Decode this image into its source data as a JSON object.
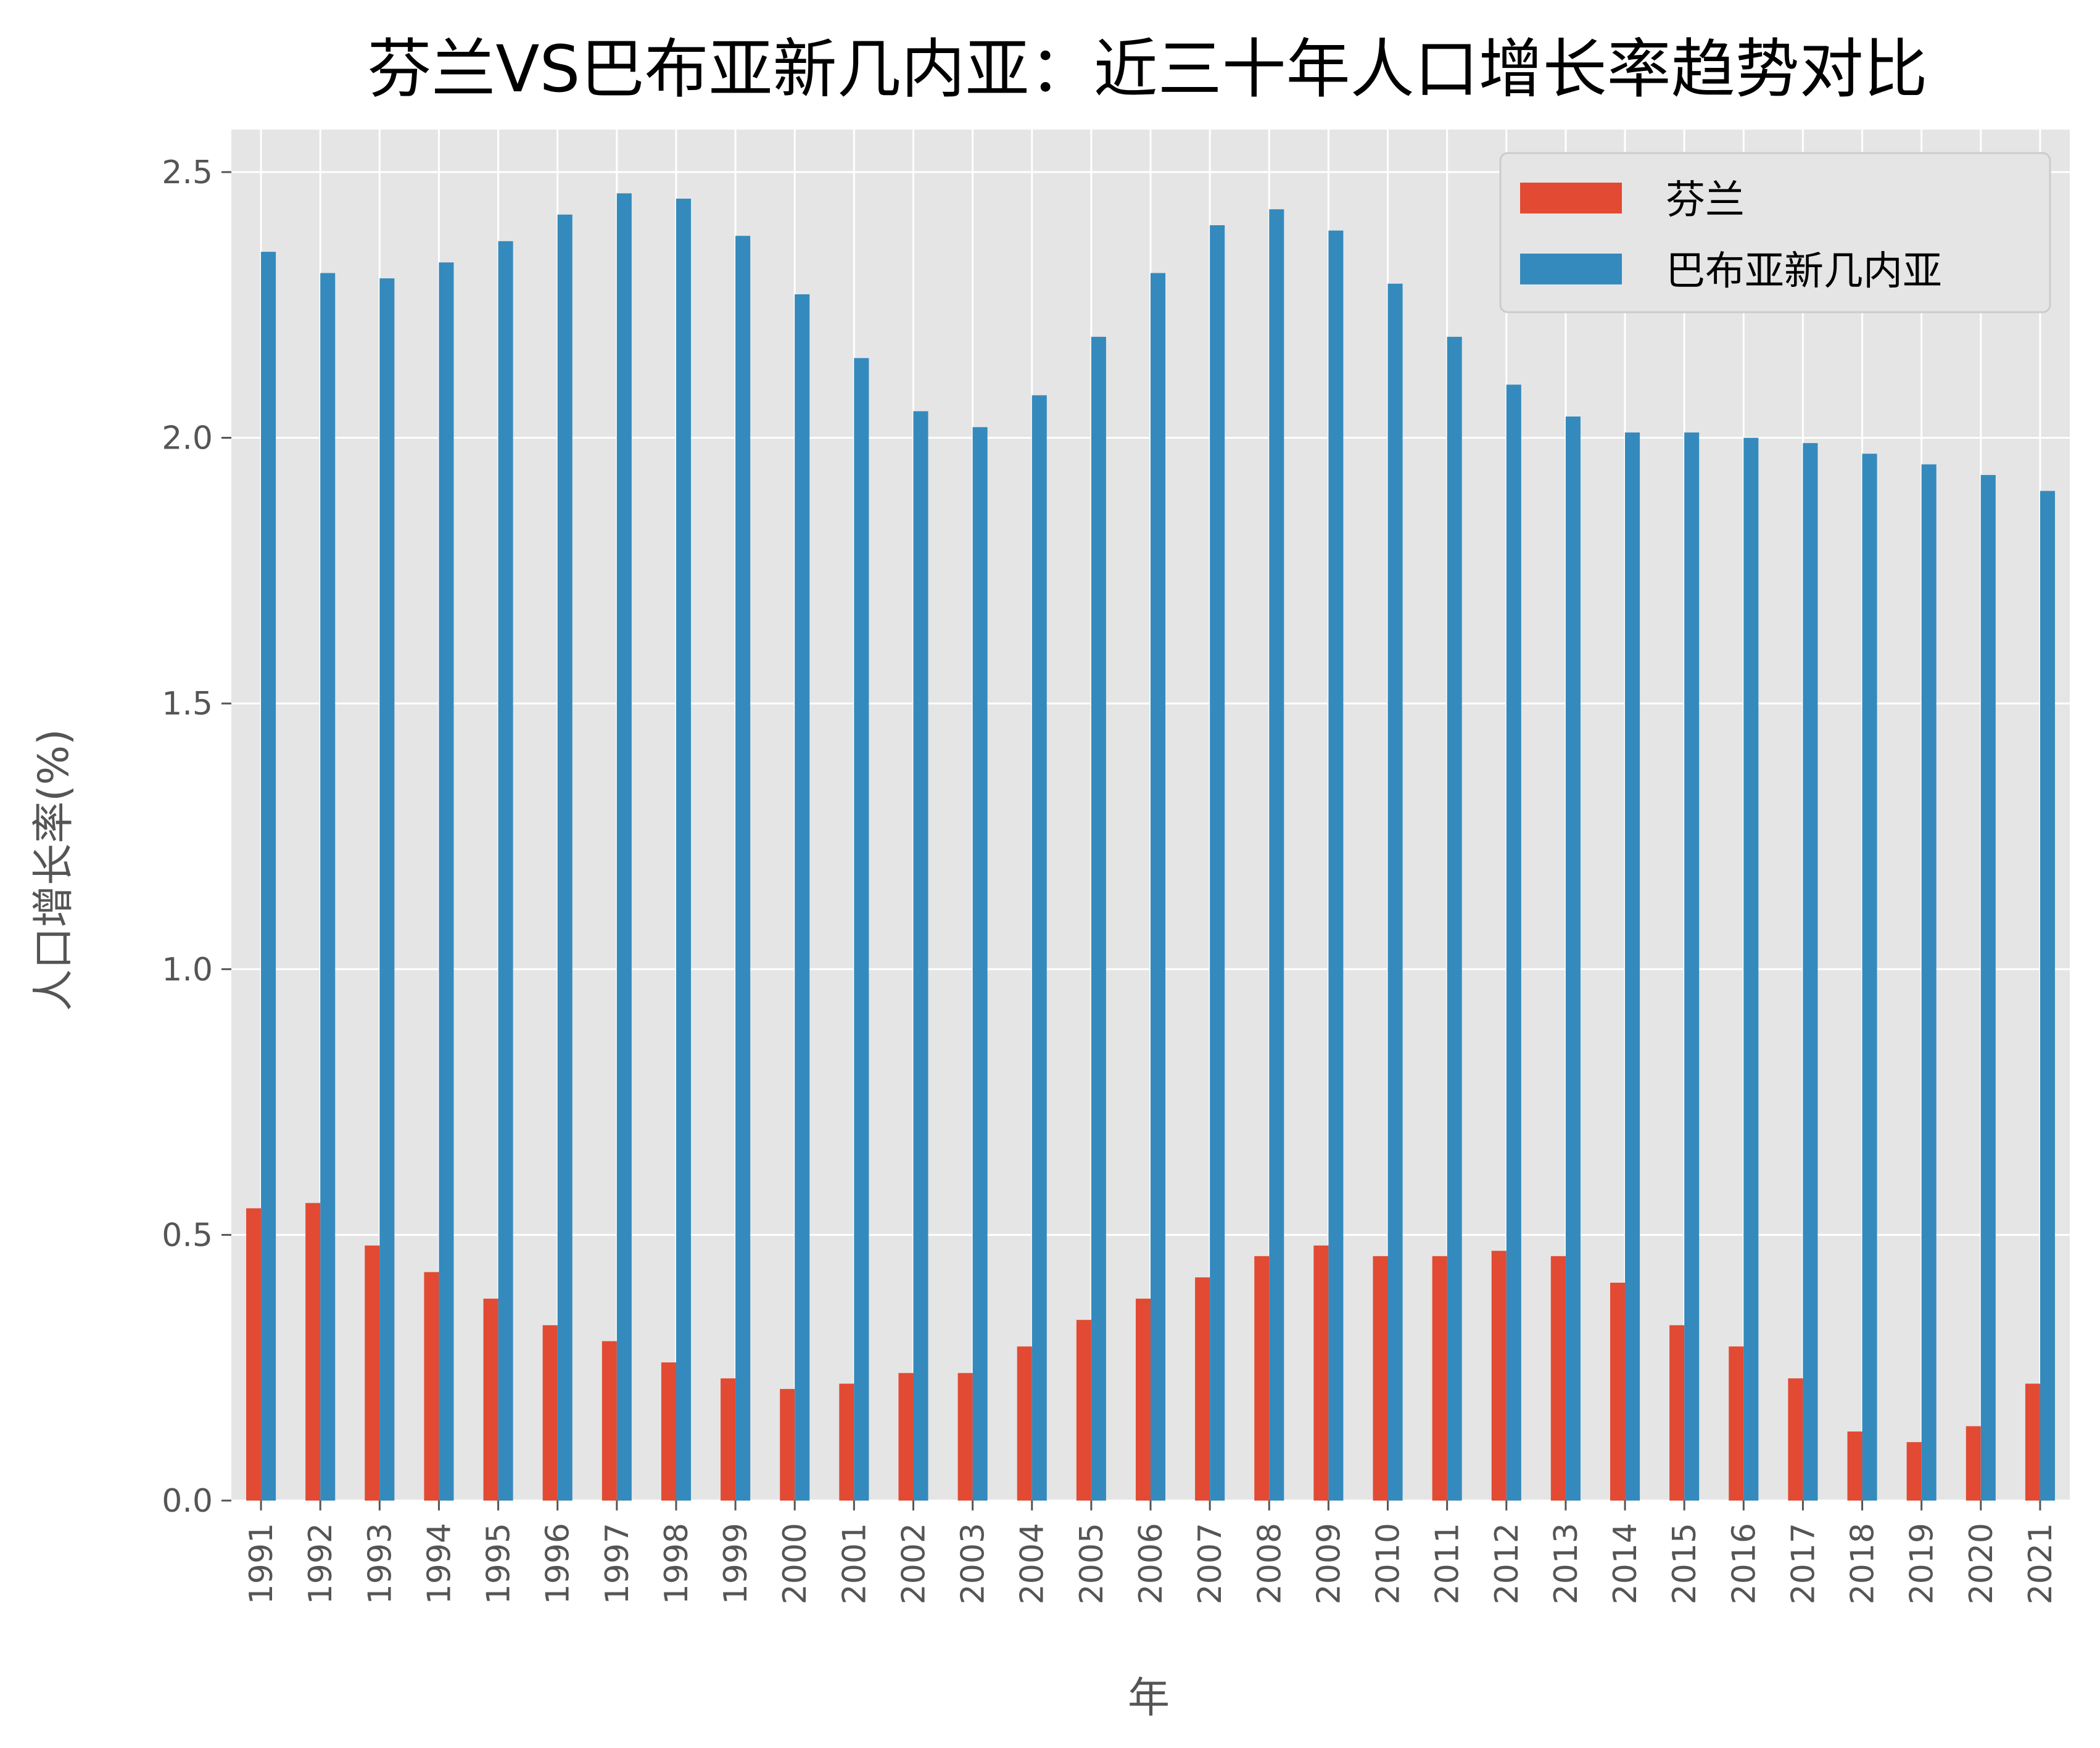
{
  "chart_data": {
    "type": "bar",
    "title": "芬兰VS巴布亚新几内亚：近三十年人口增长率趋势对比",
    "xlabel": "年",
    "ylabel": "人口增长率(%)",
    "ylim": [
      0,
      2.58
    ],
    "yticks": [
      "0.0",
      "0.5",
      "1.0",
      "1.5",
      "2.0",
      "2.5"
    ],
    "grid": true,
    "legend_position": "top-right",
    "categories": [
      "1991",
      "1992",
      "1993",
      "1994",
      "1995",
      "1996",
      "1997",
      "1998",
      "1999",
      "2000",
      "2001",
      "2002",
      "2003",
      "2004",
      "2005",
      "2006",
      "2007",
      "2008",
      "2009",
      "2010",
      "2011",
      "2012",
      "2013",
      "2014",
      "2015",
      "2016",
      "2017",
      "2018",
      "2019",
      "2020",
      "2021"
    ],
    "series": [
      {
        "name": "芬兰",
        "color": "#E24A33",
        "values": [
          0.55,
          0.56,
          0.48,
          0.43,
          0.38,
          0.33,
          0.3,
          0.26,
          0.23,
          0.21,
          0.22,
          0.24,
          0.24,
          0.29,
          0.34,
          0.38,
          0.42,
          0.46,
          0.48,
          0.46,
          0.46,
          0.47,
          0.46,
          0.41,
          0.33,
          0.29,
          0.23,
          0.13,
          0.11,
          0.14,
          0.22
        ]
      },
      {
        "name": "巴布亚新几内亚",
        "color": "#348ABD",
        "values": [
          2.35,
          2.31,
          2.3,
          2.33,
          2.37,
          2.42,
          2.46,
          2.45,
          2.38,
          2.27,
          2.15,
          2.05,
          2.02,
          2.08,
          2.19,
          2.31,
          2.4,
          2.43,
          2.39,
          2.29,
          2.19,
          2.1,
          2.04,
          2.01,
          2.01,
          2.0,
          1.99,
          1.97,
          1.95,
          1.93,
          1.9
        ]
      }
    ]
  },
  "colors": {
    "plot_background": "#E5E5E5",
    "grid": "#FFFFFF",
    "tick_text": "#555555"
  }
}
